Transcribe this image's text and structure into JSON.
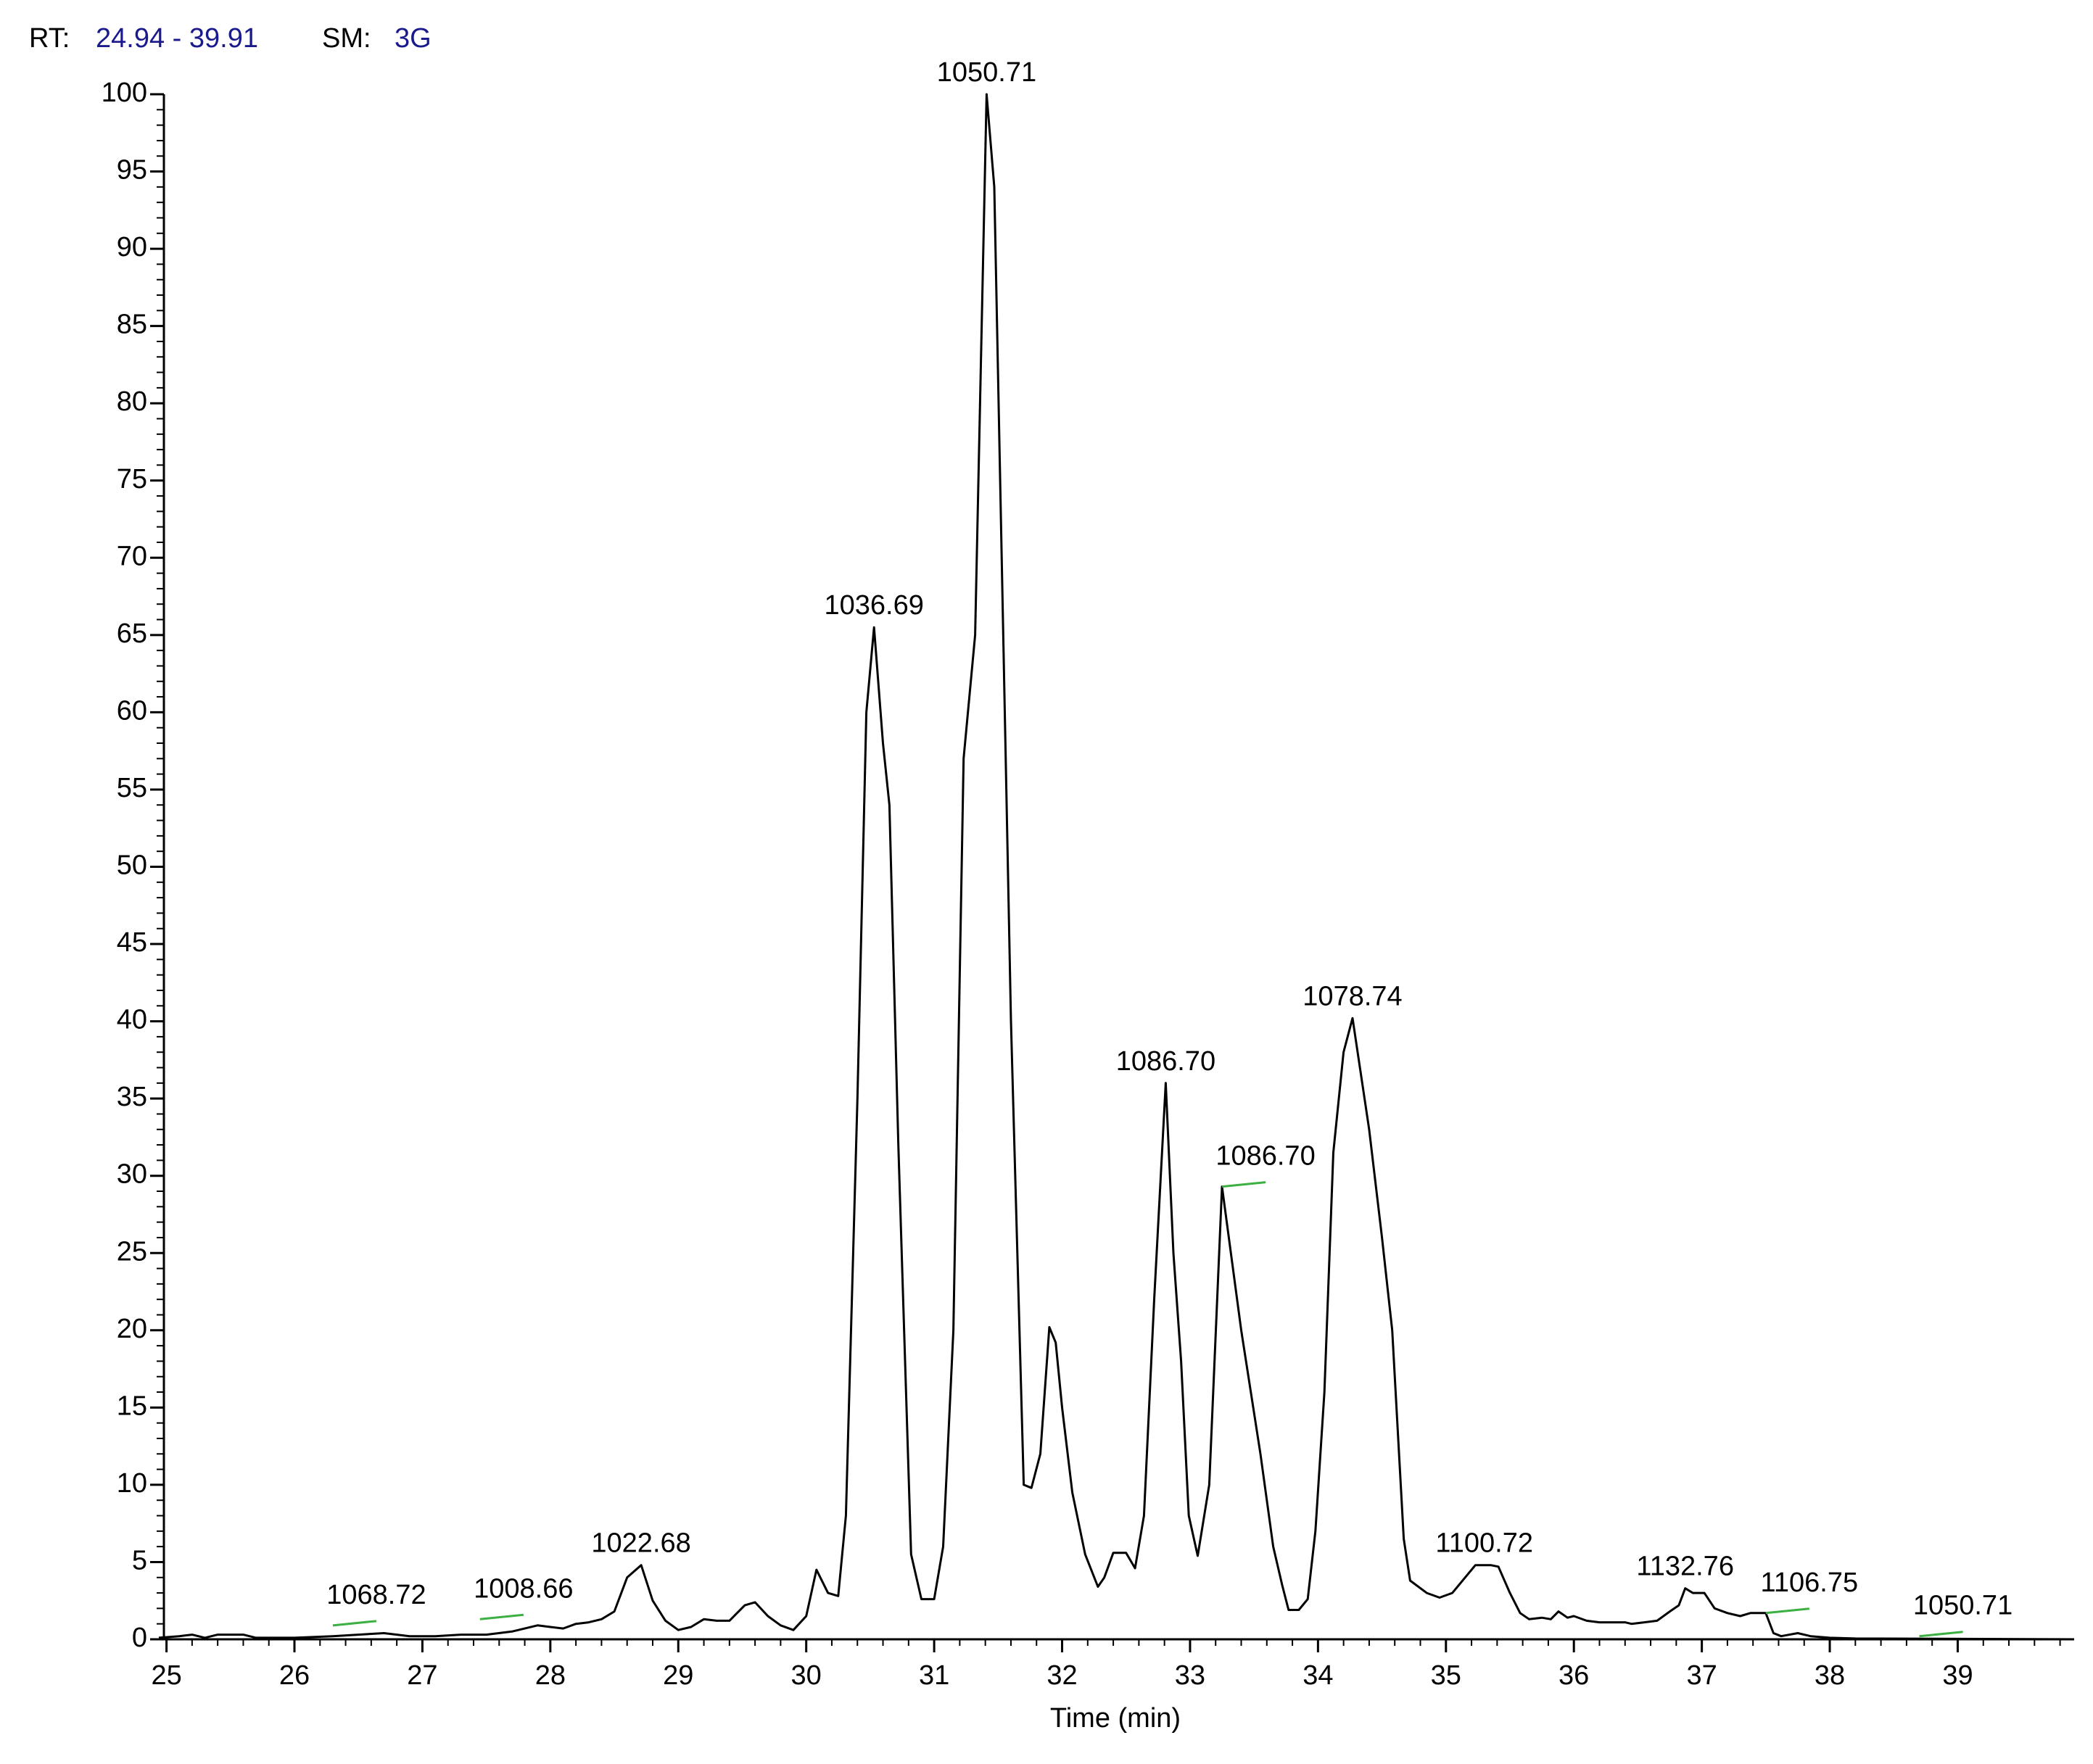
{
  "header": {
    "rt_label": "RT:",
    "rt_value": "24.94 - 39.91",
    "sm_label": "SM:",
    "sm_value": "3G"
  },
  "chart_data": {
    "type": "line",
    "x_label": "Time (min)",
    "xlim": [
      24.94,
      39.91
    ],
    "xticks": [
      25,
      26,
      27,
      28,
      29,
      30,
      31,
      32,
      33,
      34,
      35,
      36,
      37,
      38,
      39
    ],
    "ylim": [
      0,
      100
    ],
    "yticks": [
      0,
      5,
      10,
      15,
      20,
      25,
      30,
      35,
      40,
      45,
      50,
      55,
      60,
      65,
      70,
      75,
      80,
      85,
      90,
      95,
      100
    ],
    "minor_ticks": true,
    "grid": false,
    "series": [
      {
        "color": "#000000",
        "x": [
          24.94,
          25.1,
          25.2,
          25.3,
          25.4,
          25.6,
          25.7,
          26.0,
          26.3,
          26.5,
          26.7,
          26.9,
          27.1,
          27.3,
          27.5,
          27.7,
          27.9,
          28.0,
          28.1,
          28.2,
          28.3,
          28.4,
          28.5,
          28.6,
          28.71,
          28.8,
          28.9,
          29.0,
          29.1,
          29.2,
          29.3,
          29.4,
          29.52,
          29.6,
          29.7,
          29.8,
          29.9,
          30.0,
          30.08,
          30.17,
          30.25,
          30.31,
          30.4,
          30.47,
          30.53,
          30.6,
          30.65,
          30.72,
          30.82,
          30.9,
          31.0,
          31.07,
          31.15,
          31.23,
          31.32,
          31.41,
          31.47,
          31.6,
          31.7,
          31.76,
          31.83,
          31.9,
          31.95,
          32.0,
          32.08,
          32.18,
          32.28,
          32.33,
          32.4,
          32.5,
          32.57,
          32.64,
          32.72,
          32.81,
          32.87,
          32.93,
          32.99,
          33.06,
          33.15,
          33.25,
          33.4,
          33.55,
          33.65,
          33.72,
          33.77,
          33.85,
          33.92,
          33.98,
          34.05,
          34.12,
          34.2,
          34.27,
          34.4,
          34.5,
          34.58,
          34.67,
          34.72,
          34.85,
          34.95,
          35.05,
          35.15,
          35.23,
          35.35,
          35.41,
          35.5,
          35.58,
          35.65,
          35.75,
          35.82,
          35.88,
          35.95,
          36.0,
          36.1,
          36.2,
          36.4,
          36.45,
          36.55,
          36.65,
          36.75,
          36.82,
          36.87,
          36.93,
          37.02,
          37.1,
          37.2,
          37.3,
          37.38,
          37.5,
          37.56,
          37.62,
          37.75,
          37.85,
          38.0,
          38.2,
          39.91
        ],
        "values": [
          0.1,
          0.2,
          0.3,
          0.1,
          0.3,
          0.3,
          0.1,
          0.1,
          0.2,
          0.3,
          0.4,
          0.2,
          0.2,
          0.3,
          0.3,
          0.5,
          0.9,
          0.8,
          0.7,
          1.0,
          1.1,
          1.3,
          1.8,
          4.0,
          4.8,
          2.5,
          1.2,
          0.6,
          0.8,
          1.3,
          1.2,
          1.2,
          2.2,
          2.4,
          1.5,
          0.9,
          0.6,
          1.5,
          4.5,
          3.0,
          2.8,
          8.0,
          35,
          60,
          65.5,
          58,
          54,
          32,
          5.5,
          2.6,
          2.6,
          6,
          20,
          57,
          65,
          100,
          94,
          40,
          10,
          9.8,
          12,
          20.2,
          19.2,
          15,
          9.5,
          5.5,
          3.4,
          4.0,
          5.6,
          5.6,
          4.6,
          8,
          22,
          36,
          25,
          18,
          8,
          5.4,
          10,
          29.3,
          20,
          12,
          6,
          3.5,
          1.9,
          1.9,
          2.6,
          7,
          16,
          31.5,
          38,
          40.2,
          33,
          26,
          20,
          6.5,
          3.8,
          3.0,
          2.7,
          3.0,
          4.0,
          4.8,
          4.8,
          4.7,
          3.0,
          1.7,
          1.3,
          1.4,
          1.3,
          1.8,
          1.4,
          1.5,
          1.2,
          1.1,
          1.1,
          1.0,
          1.1,
          1.2,
          1.8,
          2.2,
          3.3,
          3.0,
          3.0,
          2.0,
          1.7,
          1.5,
          1.7,
          1.7,
          0.4,
          0.2,
          0.4,
          0.2,
          0.1,
          0.05,
          0
        ]
      }
    ],
    "annotations": [
      {
        "text": "1068.72",
        "x": 26.3,
        "y": 0.9,
        "color": "#3cb043"
      },
      {
        "text": "1008.66",
        "x": 27.45,
        "y": 1.3,
        "color": "#3cb043"
      },
      {
        "text": "1022.68",
        "x": 28.71,
        "y": 4.8
      },
      {
        "text": "1036.69",
        "x": 30.53,
        "y": 65.5
      },
      {
        "text": "1050.71",
        "x": 31.41,
        "y": 100
      },
      {
        "text": "1086.70",
        "x": 32.81,
        "y": 36
      },
      {
        "text": "1086.70",
        "x": 33.25,
        "y": 29.3,
        "color": "#3cb043"
      },
      {
        "text": "1078.74",
        "x": 34.27,
        "y": 40.2
      },
      {
        "text": "1100.72",
        "x": 35.3,
        "y": 4.8
      },
      {
        "text": "1132.76",
        "x": 36.87,
        "y": 3.3
      },
      {
        "text": "1106.75",
        "x": 37.5,
        "y": 1.7,
        "color": "#3cb043"
      },
      {
        "text": "1050.71",
        "x": 38.7,
        "y": 0.2,
        "color": "#3cb043"
      }
    ]
  }
}
